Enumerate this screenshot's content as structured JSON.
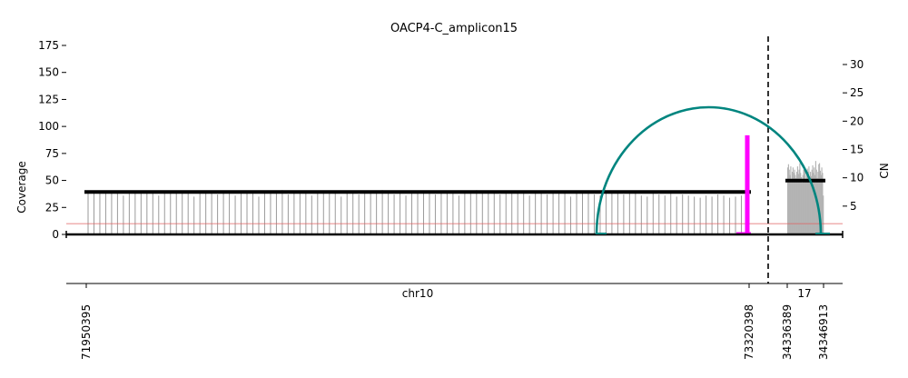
{
  "chart_data": {
    "type": "coverage-cn-plot",
    "title": "OACP4-C_amplicon15",
    "ylabel_left": "Coverage",
    "ylabel_right": "CN",
    "ylim_left": [
      0,
      180
    ],
    "yticks_left": [
      0,
      25,
      50,
      75,
      100,
      125,
      150,
      175
    ],
    "ylim_right": [
      0,
      35
    ],
    "yticks_right": [
      5,
      10,
      15,
      20,
      25,
      30
    ],
    "segments": [
      {
        "chrom": "chr10",
        "start": 71950395,
        "end": 73320398,
        "start_label": "71950395",
        "end_label": "73320398",
        "coverage_baseline": 38,
        "coverage_spikes": [
          40,
          40,
          40,
          38,
          39,
          40,
          36,
          38,
          39,
          38,
          40,
          38,
          36,
          38,
          39,
          38,
          40,
          38,
          35,
          39,
          40,
          38,
          37,
          40,
          38,
          36,
          40,
          39,
          38,
          35,
          40,
          38,
          39,
          41,
          37,
          38,
          40,
          38,
          36,
          39,
          40,
          38,
          40,
          35,
          38,
          39,
          37,
          40,
          38,
          39,
          41,
          40,
          37,
          38,
          36,
          40,
          39,
          38,
          40,
          37,
          38,
          40,
          39,
          36,
          40,
          38,
          41,
          40,
          39,
          40,
          37,
          38,
          40,
          38,
          39,
          36,
          40,
          38,
          37,
          40,
          39,
          38,
          35,
          40,
          38,
          39,
          37,
          36,
          38,
          40,
          38,
          37,
          39,
          38,
          36,
          35,
          38,
          37,
          36,
          38,
          35,
          37,
          36,
          35,
          34,
          36,
          35,
          37,
          36,
          34,
          35,
          36,
          34
        ],
        "cn_segments": [
          {
            "start": 71950395,
            "end": 73320398,
            "cn": 7.5
          }
        ]
      },
      {
        "chrom": "17",
        "start": 34336389,
        "end": 34346913,
        "start_label": "34336389",
        "end_label": "34346913",
        "coverage_spikes": [
          62,
          65,
          60,
          55,
          63,
          50,
          58,
          62,
          57,
          60,
          55,
          52,
          58,
          63,
          56,
          60,
          66,
          57,
          53,
          48,
          55,
          60,
          62,
          58,
          50,
          55,
          61,
          58,
          63,
          52,
          58,
          54,
          60,
          64,
          57,
          62,
          55,
          68,
          60,
          52,
          58,
          65,
          66,
          59,
          55,
          62,
          57,
          36
        ],
        "cn_segments": [
          {
            "start": 34336389,
            "end": 34346913,
            "cn": 9.5
          }
        ]
      }
    ],
    "breakpoints": [
      {
        "chrom": "chr10",
        "pos": 73320398,
        "cn": 17.5,
        "color": "#ff00ff"
      }
    ],
    "discordant_arcs": [
      {
        "from_chrom": "chr10",
        "from_pos": 73000000,
        "to_chrom": "17",
        "to_pos": 34346000,
        "color": "#00857f"
      }
    ],
    "threshold_line": {
      "coverage": 10,
      "color": "#e06060"
    },
    "divider": {
      "style": "dashed",
      "color": "#000000"
    }
  }
}
